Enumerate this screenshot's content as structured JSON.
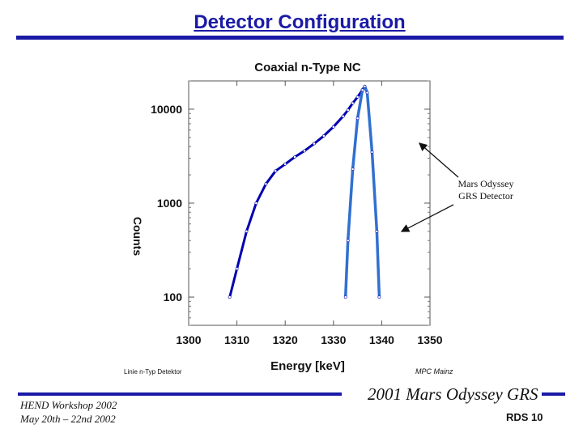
{
  "slide": {
    "title": "Detector Configuration",
    "footer_line1": "HEND Workshop 2002",
    "footer_line2": "May 20th – 22nd 2002",
    "footer_right": "2001 Mars Odyssey GRS",
    "slide_number": "RDS 10",
    "callout_line1": "Mars Odyssey",
    "callout_line2": "GRS Detector",
    "accent_color": "#1a1aa6"
  },
  "chart_data": {
    "type": "line",
    "title": "Coaxial n-Type NC",
    "xlabel": "Energy [keV]",
    "ylabel": "Counts",
    "y_scale": "log",
    "xlim": [
      1300,
      1350
    ],
    "ylim": [
      50,
      20000
    ],
    "x_ticks": [
      "1300",
      "1310",
      "1320",
      "1330",
      "1340",
      "1350"
    ],
    "y_ticks": [
      "100",
      "1000",
      "10000"
    ],
    "caption_left": "Linie n-Typ Detektor",
    "caption_right": "MPC Mainz",
    "series": [
      {
        "name": "",
        "color": "#0000b0",
        "x": [
          1308.5,
          1310,
          1312,
          1314,
          1316,
          1318,
          1320,
          1322,
          1324,
          1326,
          1328,
          1330,
          1332,
          1333,
          1334,
          1335,
          1336,
          1336.5
        ],
        "y": [
          100,
          200,
          500,
          1000,
          1600,
          2200,
          2600,
          3100,
          3600,
          4300,
          5200,
          6500,
          8400,
          9800,
          11600,
          13500,
          16000,
          17200
        ]
      },
      {
        "name": "",
        "color": "#3070d0",
        "x": [
          1332.5,
          1333,
          1334,
          1335,
          1336,
          1336.5,
          1337,
          1338,
          1339,
          1339.5
        ],
        "y": [
          100,
          400,
          2300,
          8000,
          16000,
          17500,
          15000,
          3500,
          500,
          100
        ]
      }
    ]
  }
}
